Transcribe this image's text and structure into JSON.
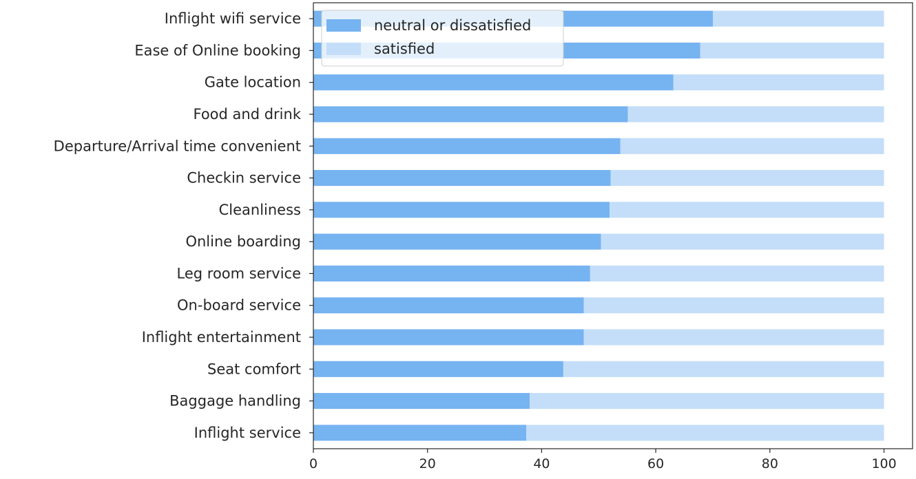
{
  "colors": {
    "neutral_or_dissatisfied": "#76b3f1",
    "satisfied": "#c4def9",
    "axis": "#262626",
    "legend_border": "#cccccc"
  },
  "chart_data": {
    "type": "bar",
    "orientation": "horizontal",
    "stacked": true,
    "categories": [
      "Inflight wifi service",
      "Ease of Online booking",
      "Gate location",
      "Food and drink",
      "Departure/Arrival time convenient",
      "Checkin service",
      "Cleanliness",
      "Online boarding",
      "Leg room service",
      "On-board service",
      "Inflight entertainment",
      "Seat comfort",
      "Baggage handling",
      "Inflight service"
    ],
    "series": [
      {
        "name": "neutral or dissatisfied",
        "values": [
          70,
          67.8,
          63.1,
          55.1,
          53.8,
          52.1,
          51.9,
          50.4,
          48.5,
          47.4,
          47.4,
          43.8,
          37.9,
          37.3
        ]
      },
      {
        "name": "satisfied",
        "values": [
          30,
          32.2,
          36.9,
          44.9,
          46.2,
          47.9,
          48.1,
          49.6,
          51.5,
          52.6,
          52.6,
          56.2,
          62.1,
          62.7
        ]
      }
    ],
    "xlim": [
      0,
      105
    ],
    "xticks": [
      0,
      20,
      40,
      60,
      80,
      100
    ],
    "xtick_labels": [
      "0",
      "20",
      "40",
      "60",
      "80",
      "100"
    ],
    "legend": {
      "position": "upper-left",
      "entries": [
        "neutral or dissatisfied",
        "satisfied"
      ]
    },
    "grid": false,
    "title": "",
    "xlabel": "",
    "ylabel": ""
  }
}
